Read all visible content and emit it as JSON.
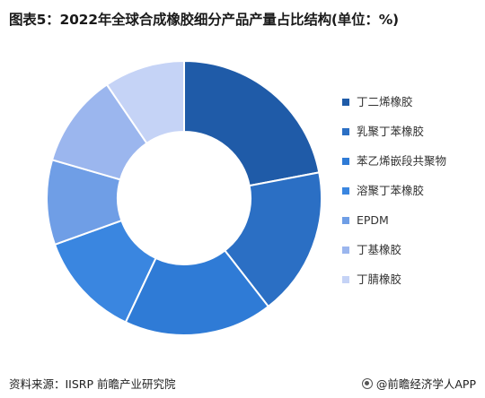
{
  "title": "图表5：2022年全球合成橡胶细分产品产量占比结构(单位：%)",
  "chart_data": {
    "type": "pie",
    "donut": true,
    "categories": [
      "丁二烯橡胶",
      "乳聚丁苯橡胶",
      "苯乙烯嵌段共聚物",
      "溶聚丁苯橡胶",
      "EPDM",
      "丁基橡胶",
      "丁腈橡胶"
    ],
    "values": [
      22,
      17.5,
      17.5,
      12.5,
      10,
      11,
      9.5
    ],
    "colors": [
      "#1f5ba8",
      "#2b6fc4",
      "#2f7bd6",
      "#3a86e0",
      "#6f9ee6",
      "#9bb6ee",
      "#c5d3f6"
    ],
    "legend_position": "right"
  },
  "footer": {
    "source": "资料来源：IISRP 前瞻产业研究院",
    "brand": "@前瞻经济学人APP"
  }
}
